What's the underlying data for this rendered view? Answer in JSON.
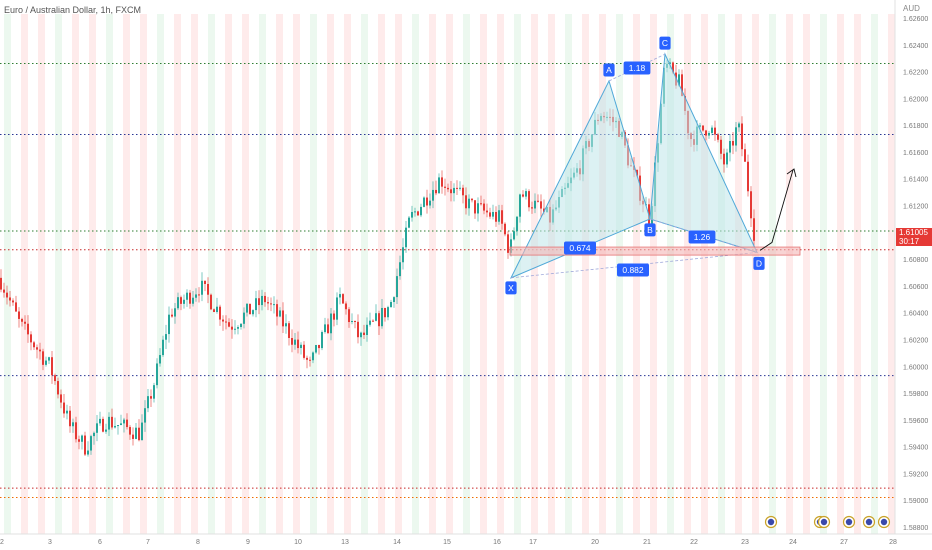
{
  "header": {
    "title": "Euro / Australian Dollar, 1h, FXCM",
    "axis_unit": "AUD"
  },
  "last_price": {
    "value": "1.61005",
    "countdown": "30:17",
    "color": "#e53935"
  },
  "colors": {
    "bull": "#26a69a",
    "bear": "#e53935",
    "pattern_fill": "#bfe6ea",
    "pattern_stroke": "#4fa8d8",
    "badge": "#2962ff",
    "session_red": "#fde4e4",
    "session_green": "#e5f6ea"
  },
  "chart_data": {
    "type": "candlestick",
    "title": "Euro / Australian Dollar, 1h, FXCM",
    "y_axis": {
      "ticks": [
        "1.62600",
        "1.62400",
        "1.62200",
        "1.62000",
        "1.61800",
        "1.61600",
        "1.61400",
        "1.61200",
        "1.61000",
        "1.60800",
        "1.60600",
        "1.60400",
        "1.60200",
        "1.60000",
        "1.59800",
        "1.59600",
        "1.59400",
        "1.59200",
        "1.59000",
        "1.58800"
      ],
      "ylim": [
        1.5878,
        1.6265
      ]
    },
    "x_axis": {
      "ticks": [
        "2",
        "3",
        "6",
        "7",
        "8",
        "9",
        "10",
        "13",
        "14",
        "15",
        "16",
        "17",
        "20",
        "21",
        "22",
        "23",
        "24",
        "27",
        "28"
      ]
    },
    "horizontal_lines": [
      {
        "price": 1.6226,
        "color": "#2e7d32"
      },
      {
        "price": 1.6173,
        "color": "#283593"
      },
      {
        "price": 1.6101,
        "color": "#2e7d32"
      },
      {
        "price": 1.6087,
        "color": "#c62828"
      },
      {
        "price": 1.5993,
        "color": "#283593"
      },
      {
        "price": 1.5909,
        "color": "#c62828"
      },
      {
        "price": 1.5902,
        "color": "#ef6c00"
      }
    ],
    "harmonic_pattern": {
      "points": [
        {
          "label": "X",
          "x": "16",
          "price": 1.6066
        },
        {
          "label": "A",
          "x": "20",
          "price": 1.6213
        },
        {
          "label": "B",
          "x": "21",
          "price": 1.611
        },
        {
          "label": "C",
          "x": "21",
          "price": 1.6233
        },
        {
          "label": "D",
          "x": "23",
          "price": 1.6085
        }
      ],
      "ratios": [
        {
          "value": "0.674"
        },
        {
          "value": "1.18"
        },
        {
          "value": "1.26"
        },
        {
          "value": "0.882"
        }
      ]
    },
    "zone": {
      "price_top": 1.6089,
      "price_bottom": 1.6083
    }
  }
}
